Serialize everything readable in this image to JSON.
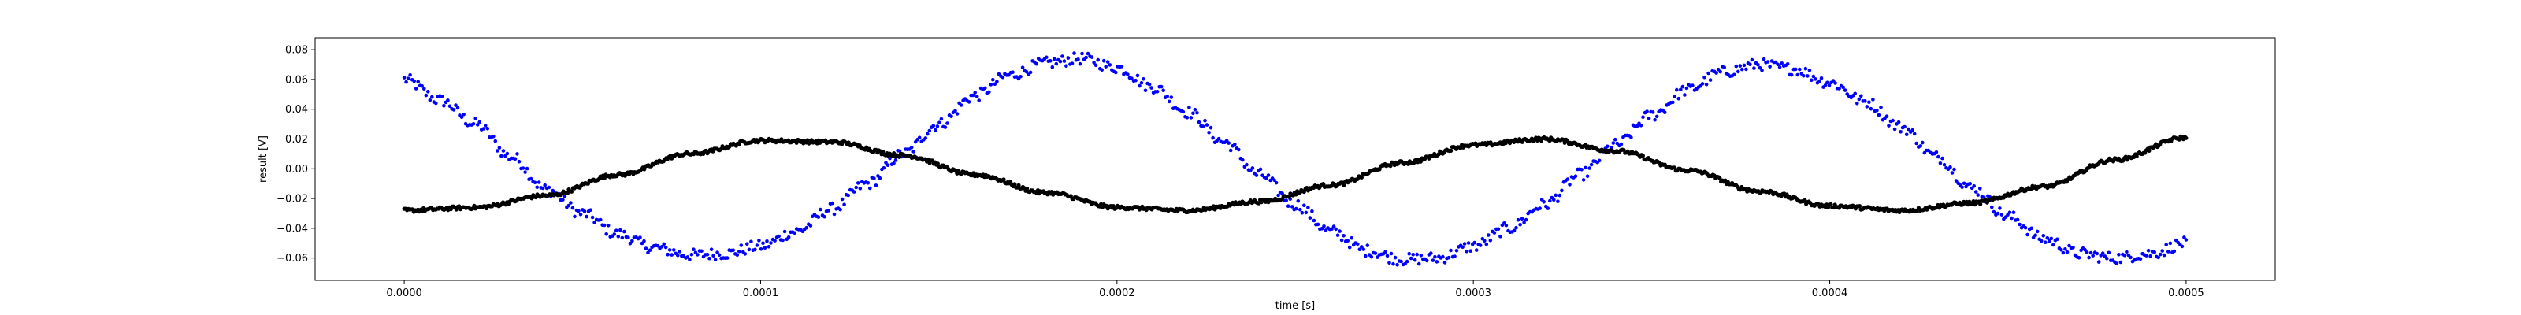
{
  "chart_data": {
    "type": "scatter",
    "title": "",
    "xlabel": "time [s]",
    "ylabel": "result [V]",
    "xlim": [
      -2.5e-05,
      0.000525
    ],
    "ylim": [
      -0.075,
      0.088
    ],
    "x_ticks": [
      0.0,
      0.0001,
      0.0002,
      0.0003,
      0.0004,
      0.0005
    ],
    "x_tick_labels": [
      "0.0000",
      "0.0001",
      "0.0002",
      "0.0003",
      "0.0004",
      "0.0005"
    ],
    "y_ticks": [
      -0.06,
      -0.04,
      -0.02,
      0.0,
      0.02,
      0.04,
      0.06,
      0.08
    ],
    "y_tick_labels": [
      "−0.06",
      "−0.04",
      "−0.02",
      "0.00",
      "0.02",
      "0.04",
      "0.06",
      "0.08"
    ],
    "grid": false,
    "legend": "none",
    "series": [
      {
        "color": "#0000ff",
        "marker": "dot",
        "description_of_points": [
          [
            0.0,
            0.06
          ],
          [
            1e-05,
            0.046
          ],
          [
            2e-05,
            0.03
          ],
          [
            3e-05,
            0.008
          ],
          [
            4e-05,
            -0.014
          ],
          [
            5e-05,
            -0.03
          ],
          [
            6e-05,
            -0.044
          ],
          [
            7e-05,
            -0.053
          ],
          [
            8e-05,
            -0.058
          ],
          [
            9e-05,
            -0.057
          ],
          [
            0.0001,
            -0.052
          ],
          [
            0.00011,
            -0.042
          ],
          [
            0.00012,
            -0.027
          ],
          [
            0.00013,
            -0.01
          ],
          [
            0.00014,
            0.01
          ],
          [
            0.00015,
            0.03
          ],
          [
            0.00016,
            0.049
          ],
          [
            0.00017,
            0.063
          ],
          [
            0.00018,
            0.071
          ],
          [
            0.00019,
            0.074
          ],
          [
            0.0002,
            0.068
          ],
          [
            0.00021,
            0.055
          ],
          [
            0.00022,
            0.038
          ],
          [
            0.00023,
            0.018
          ],
          [
            0.00024,
            -0.004
          ],
          [
            0.00025,
            -0.024
          ],
          [
            0.00026,
            -0.042
          ],
          [
            0.00027,
            -0.055
          ],
          [
            0.00028,
            -0.061
          ],
          [
            0.00029,
            -0.06
          ],
          [
            0.0003,
            -0.052
          ],
          [
            0.00031,
            -0.04
          ],
          [
            0.00032,
            -0.024
          ],
          [
            0.00033,
            -0.004
          ],
          [
            0.00034,
            0.016
          ],
          [
            0.00035,
            0.036
          ],
          [
            0.00036,
            0.053
          ],
          [
            0.00037,
            0.065
          ],
          [
            0.00038,
            0.07
          ],
          [
            0.00039,
            0.067
          ],
          [
            0.0004,
            0.058
          ],
          [
            0.00041,
            0.045
          ],
          [
            0.00042,
            0.028
          ],
          [
            0.00043,
            0.008
          ],
          [
            0.00044,
            -0.013
          ],
          [
            0.00045,
            -0.032
          ],
          [
            0.00046,
            -0.047
          ],
          [
            0.00047,
            -0.057
          ],
          [
            0.00048,
            -0.06
          ],
          [
            0.00049,
            -0.057
          ],
          [
            0.0005,
            -0.05
          ]
        ]
      },
      {
        "color": "#000000",
        "marker": "dot",
        "description_of_points": [
          [
            0.0,
            -0.028
          ],
          [
            2e-05,
            -0.026
          ],
          [
            4e-05,
            -0.018
          ],
          [
            6e-05,
            -0.004
          ],
          [
            8e-05,
            0.01
          ],
          [
            0.0001,
            0.019
          ],
          [
            0.00012,
            0.018
          ],
          [
            0.00014,
            0.009
          ],
          [
            0.00016,
            -0.004
          ],
          [
            0.00018,
            -0.016
          ],
          [
            0.0002,
            -0.026
          ],
          [
            0.00022,
            -0.028
          ],
          [
            0.00024,
            -0.022
          ],
          [
            0.00026,
            -0.011
          ],
          [
            0.00028,
            0.004
          ],
          [
            0.0003,
            0.016
          ],
          [
            0.00032,
            0.02
          ],
          [
            0.00034,
            0.012
          ],
          [
            0.00036,
            -0.001
          ],
          [
            0.00038,
            -0.015
          ],
          [
            0.0004,
            -0.025
          ],
          [
            0.00042,
            -0.028
          ],
          [
            0.00044,
            -0.023
          ],
          [
            0.00046,
            -0.012
          ],
          [
            0.00048,
            0.006
          ],
          [
            0.0005,
            0.021
          ]
        ]
      }
    ]
  }
}
